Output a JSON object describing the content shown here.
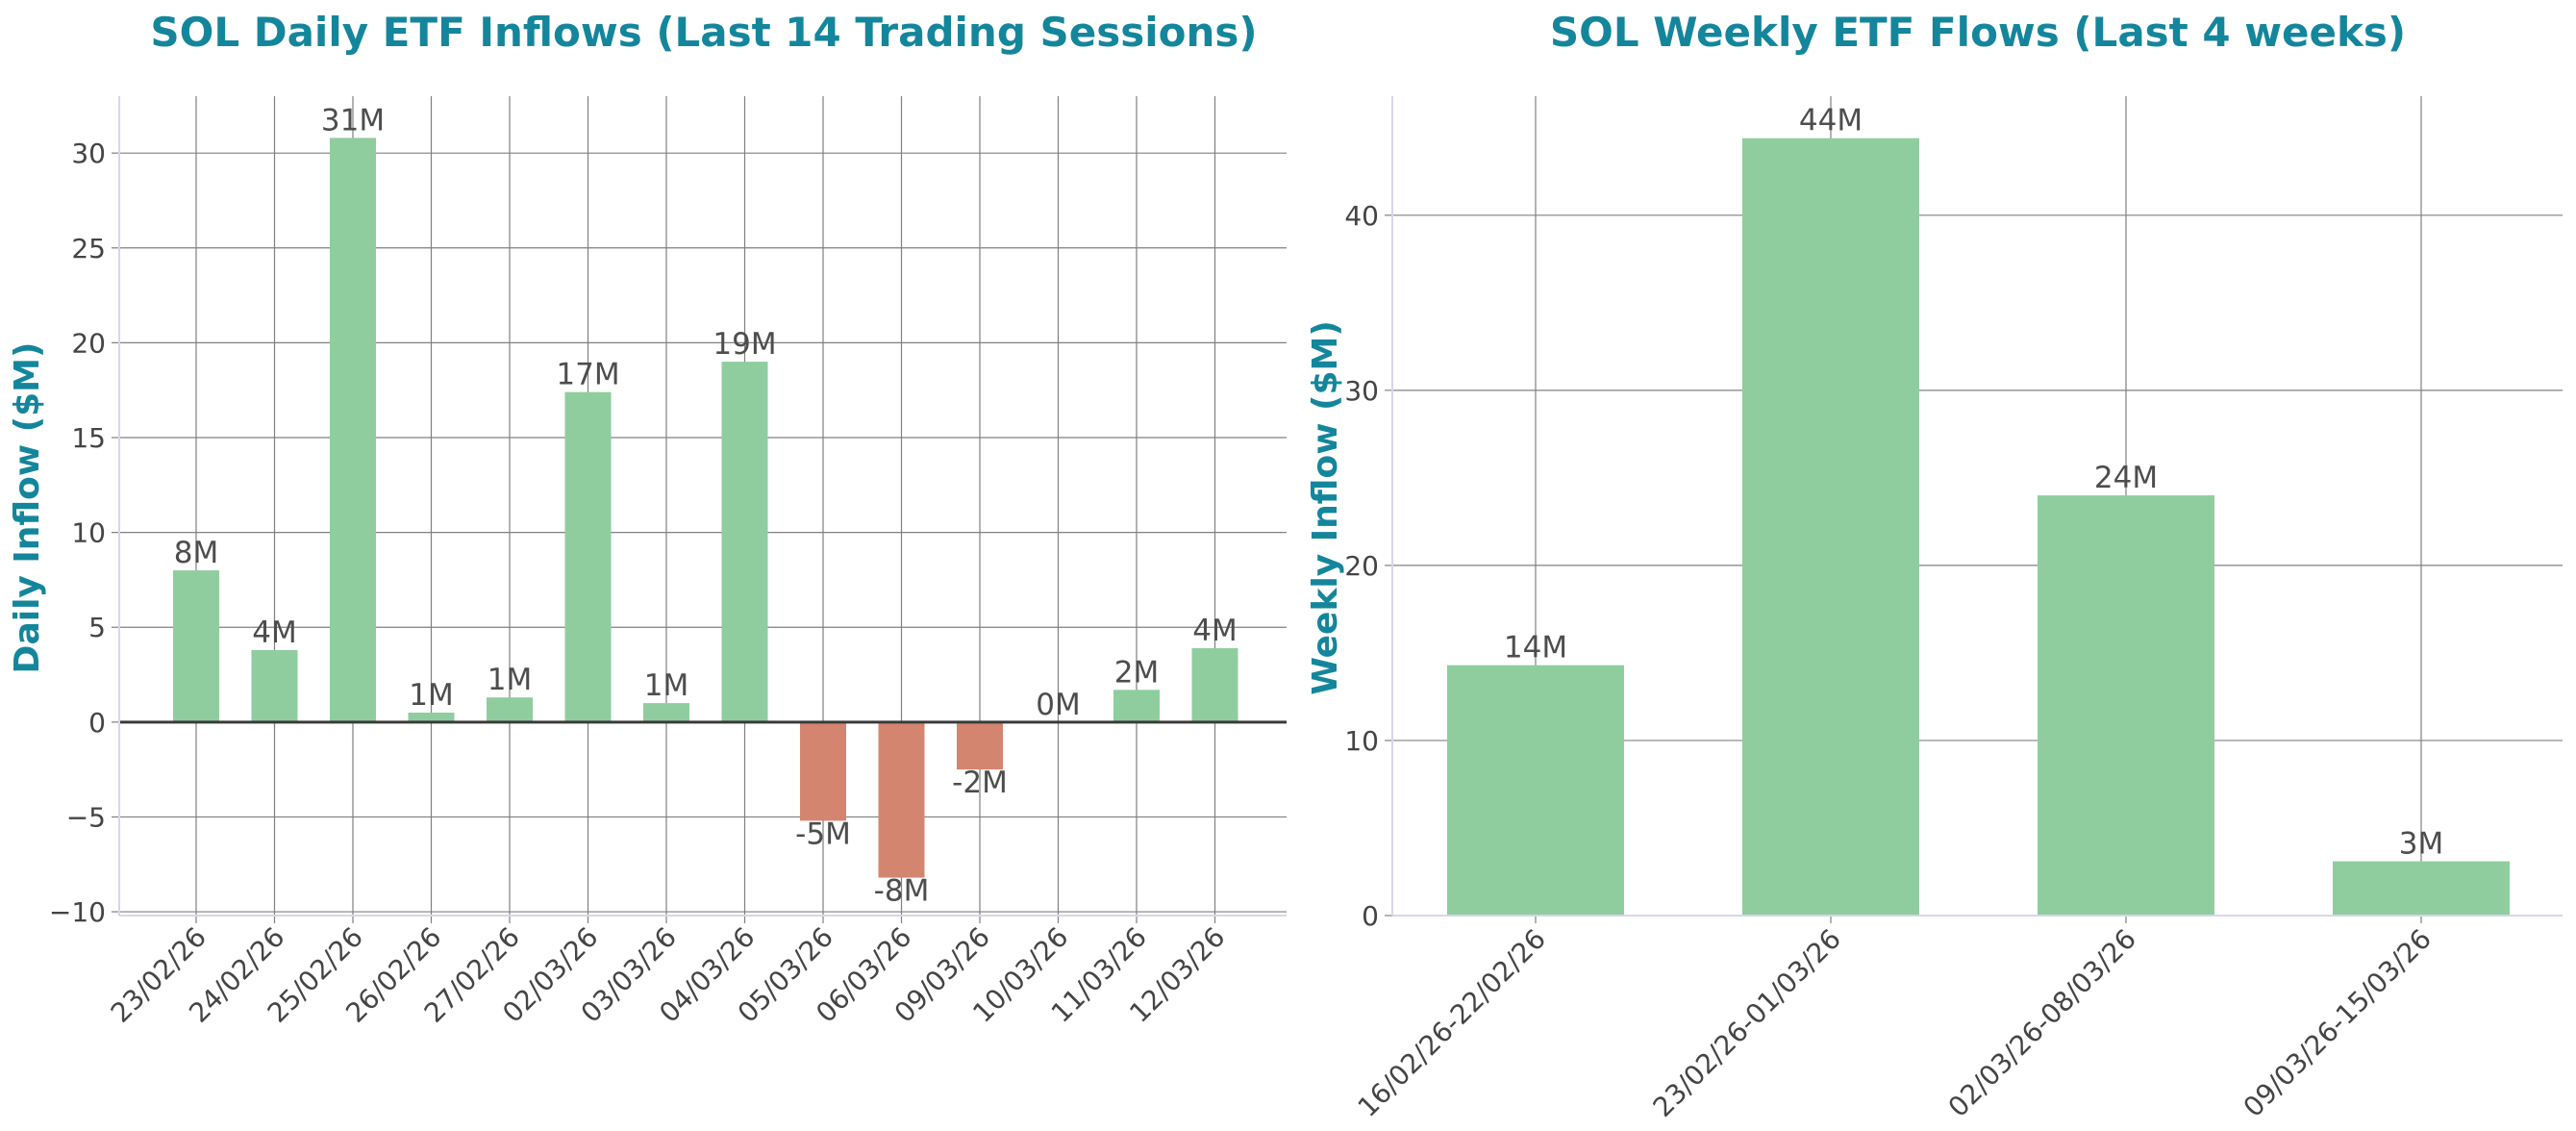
{
  "colors": {
    "title": "#14869c",
    "positive_bar": "#8fcd9e",
    "negative_bar": "#d4856f",
    "grid": "#808080",
    "zero_line": "#3a3a3a",
    "axis_spine": "#d6d6ea",
    "tick_text": "#444444",
    "data_label": "#4d4d4d"
  },
  "chart_data": [
    {
      "type": "bar",
      "title": "SOL Daily ETF Inflows (Last 14 Trading Sessions)",
      "xlabel": "",
      "ylabel": "Daily Inflow ($M)",
      "categories": [
        "23/02/26",
        "24/02/26",
        "25/02/26",
        "26/02/26",
        "27/02/26",
        "02/03/26",
        "03/03/26",
        "04/03/26",
        "05/03/26",
        "06/03/26",
        "09/03/26",
        "10/03/26",
        "11/03/26",
        "12/03/26"
      ],
      "values": [
        8.0,
        3.8,
        30.8,
        0.5,
        1.3,
        17.4,
        1.0,
        19.0,
        -5.2,
        -8.2,
        -2.5,
        0.0,
        1.7,
        3.9
      ],
      "data_labels": [
        "8M",
        "4M",
        "31M",
        "1M",
        "1M",
        "17M",
        "1M",
        "19M",
        "-5M",
        "-8M",
        "-2M",
        "0M",
        "2M",
        "4M"
      ],
      "yticks": [
        -10,
        -5,
        0,
        5,
        10,
        15,
        20,
        25,
        30
      ],
      "ytick_labels": [
        "−10",
        "−5",
        "0",
        "5",
        "10",
        "15",
        "20",
        "25",
        "30"
      ],
      "ylim": [
        -10.2,
        33
      ],
      "grid": true,
      "legend": "none"
    },
    {
      "type": "bar",
      "title": "SOL Weekly ETF Flows (Last 4 weeks)",
      "xlabel": "",
      "ylabel": "Weekly Inflow ($M)",
      "categories": [
        "16/02/26-22/02/26",
        "23/02/26-01/03/26",
        "02/03/26-08/03/26",
        "09/03/26-15/03/26"
      ],
      "values": [
        14.3,
        44.4,
        24.0,
        3.1
      ],
      "data_labels": [
        "14M",
        "44M",
        "24M",
        "3M"
      ],
      "yticks": [
        0,
        10,
        20,
        30,
        40
      ],
      "ytick_labels": [
        "0",
        "10",
        "20",
        "30",
        "40"
      ],
      "ylim": [
        0,
        46.8
      ],
      "grid": true,
      "legend": "none"
    }
  ]
}
